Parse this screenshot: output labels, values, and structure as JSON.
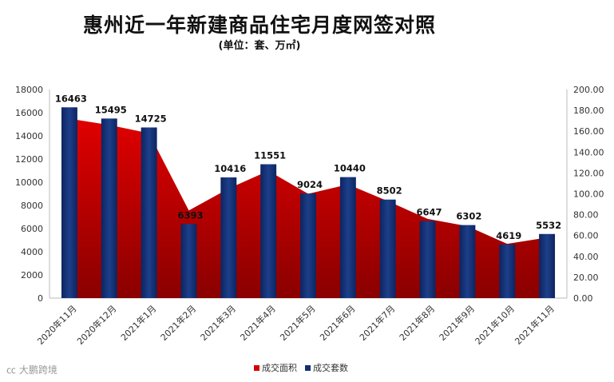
{
  "title": "惠州近一年新建商品住宅月度网签对照",
  "subtitle": "(单位：套、万㎡)",
  "source_mark": "㏄ 大鹏跨境",
  "chart_data": {
    "type": "bar",
    "categories": [
      "2020年11月",
      "2020年12月",
      "2021年1月",
      "2021年2月",
      "2021年3月",
      "2021年4月",
      "2021年5月",
      "2021年6月",
      "2021年7月",
      "2021年8月",
      "2021年9月",
      "2021年10月",
      "2021年11月"
    ],
    "series": [
      {
        "name": "成交套数",
        "type": "bar",
        "axis": "left",
        "color": "#14306e",
        "values": [
          16463,
          15495,
          14725,
          6393,
          10416,
          11551,
          9024,
          10440,
          8502,
          6647,
          6302,
          4619,
          5532
        ]
      },
      {
        "name": "成交面积",
        "type": "area",
        "axis": "right",
        "color": "#d40000",
        "values": [
          172,
          166,
          158,
          84,
          105,
          122,
          100,
          109,
          93,
          76,
          69,
          52,
          58
        ]
      }
    ],
    "data_labels": [
      "16463",
      "15495",
      "14725",
      "6393",
      "10416",
      "11551",
      "9024",
      "10440",
      "8502",
      "6647",
      "6302",
      "4619",
      "5532"
    ],
    "left_axis": {
      "min": 0,
      "max": 18000,
      "step": 2000,
      "ticks": [
        "0",
        "2000",
        "4000",
        "6000",
        "8000",
        "10000",
        "12000",
        "14000",
        "16000",
        "18000"
      ]
    },
    "right_axis": {
      "min": 0,
      "max": 200,
      "step": 20,
      "ticks": [
        "0.00",
        "20.00",
        "40.00",
        "60.00",
        "80.00",
        "100.00",
        "120.00",
        "140.00",
        "160.00",
        "180.00",
        "200.00"
      ]
    },
    "legend_position": "bottom",
    "grid": false
  },
  "colors": {
    "bar": "#14306e",
    "area": "#d40000"
  }
}
